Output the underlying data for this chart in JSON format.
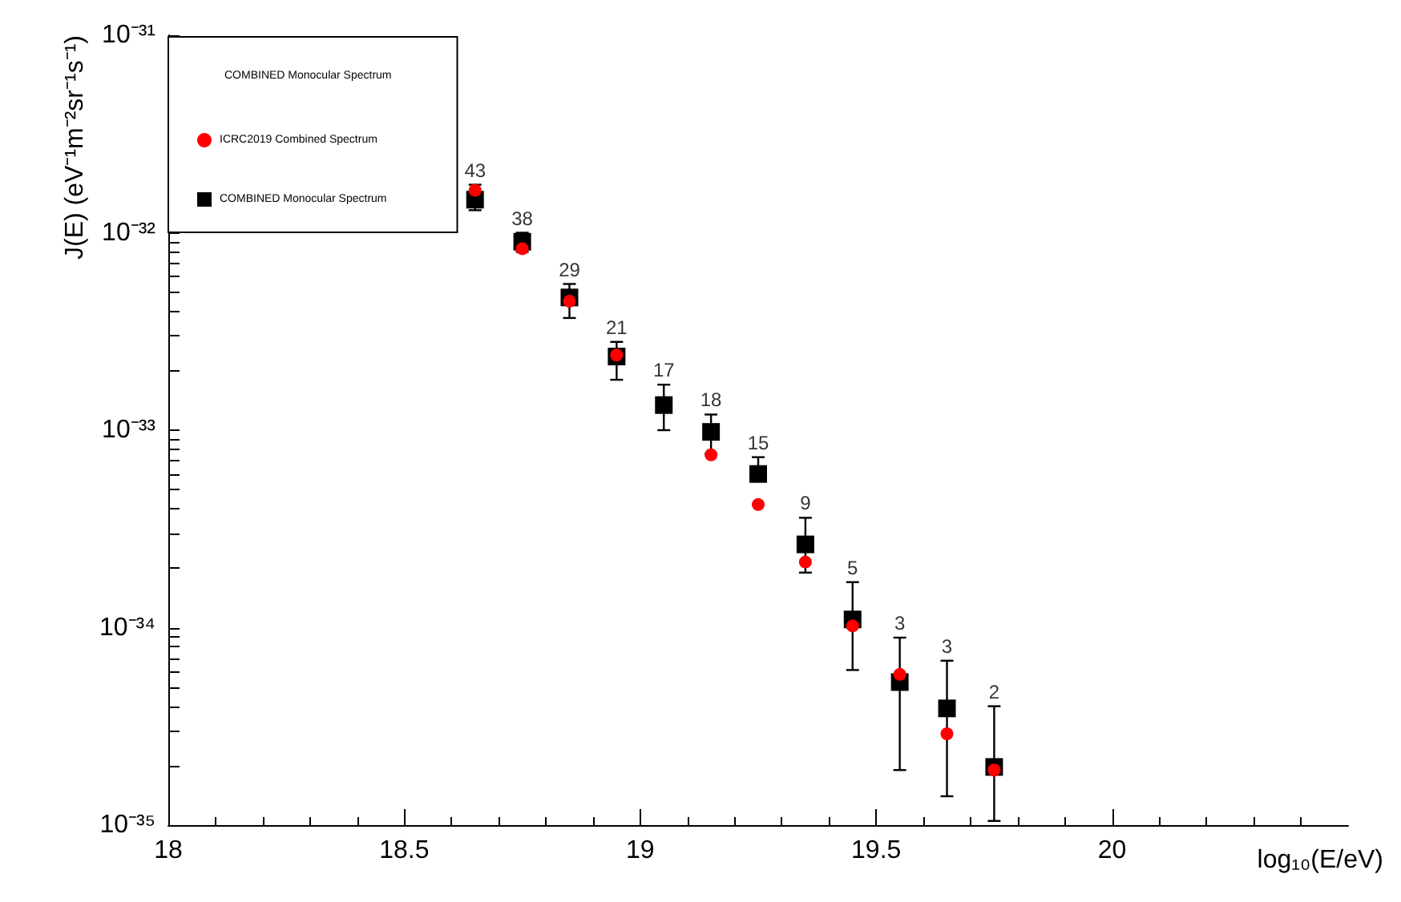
{
  "chart_data": {
    "type": "scatter",
    "xlabel": "log₁₀(E/eV)",
    "ylabel": "J(E) (eV⁻¹m⁻²sr⁻¹s⁻¹)",
    "legend_title": "COMBINED Monocular Spectrum",
    "legend": "top left",
    "log": "y",
    "xlim": [
      18,
      20.5
    ],
    "xticks": [
      18,
      18.5,
      19,
      19.5,
      20
    ],
    "ylim": [
      1e-35,
      1e-31
    ],
    "yticks": [
      {
        "value": 1e-35,
        "label": "10⁻³⁵"
      },
      {
        "value": 1e-34,
        "label": "10⁻³⁴"
      },
      {
        "value": 1e-33,
        "label": "10⁻³³"
      },
      {
        "value": 1e-32,
        "label": "10⁻³²"
      },
      {
        "value": 1e-31,
        "label": "10⁻³¹"
      }
    ],
    "x": [
      18.65,
      18.75,
      18.85,
      18.95,
      19.05,
      19.15,
      19.25,
      19.35,
      19.45,
      19.55,
      19.65,
      19.75
    ],
    "series": [
      {
        "name": "ICRC2019 Combined Spectrum",
        "color": "#ff0000",
        "marker": "circle",
        "values": [
          1.64e-32,
          8.3e-33,
          4.5e-33,
          2.4e-33,
          null,
          7.5e-34,
          4.2e-34,
          2.15e-34,
          1.02e-34,
          5.8e-35,
          2.9e-35,
          1.9e-35
        ]
      },
      {
        "name": "COMBINED Monocular Spectrum",
        "color": "#000000",
        "marker": "square",
        "values": [
          1.47e-32,
          9e-33,
          4.7e-33,
          2.36e-33,
          1.34e-33,
          9.8e-34,
          6e-34,
          2.64e-34,
          1.1e-34,
          5.3e-35,
          3.9e-35,
          1.97e-35
        ],
        "errors": [
          [
            1.3e-32,
            1.75e-32
          ],
          [
            8e-33,
            1e-32
          ],
          [
            3.7e-33,
            5.5e-33
          ],
          [
            1.8e-33,
            2.8e-33
          ],
          [
            1e-33,
            1.7e-33
          ],
          [
            7.6e-34,
            1.2e-33
          ],
          [
            6e-34,
            7.3e-34
          ],
          [
            1.9e-34,
            3.6e-34
          ],
          [
            6.1e-35,
            1.7e-34
          ],
          [
            1.9e-35,
            8.9e-35
          ],
          [
            1.4e-35,
            6.8e-35
          ],
          [
            1.05e-35,
            4e-35
          ]
        ]
      }
    ],
    "annotations": [
      {
        "text": "43",
        "x": 18.65,
        "y": 1.75e-32
      },
      {
        "text": "38",
        "x": 18.75,
        "y": 1e-32
      },
      {
        "text": "29",
        "x": 18.85,
        "y": 5.5e-33
      },
      {
        "text": "21",
        "x": 18.95,
        "y": 2.8e-33
      },
      {
        "text": "17",
        "x": 19.05,
        "y": 1.7e-33
      },
      {
        "text": "18",
        "x": 19.15,
        "y": 1.2e-33
      },
      {
        "text": "15",
        "x": 19.25,
        "y": 7.3e-34
      },
      {
        "text": "9",
        "x": 19.35,
        "y": 3.6e-34
      },
      {
        "text": "5",
        "x": 19.45,
        "y": 1.7e-34
      },
      {
        "text": "3",
        "x": 19.55,
        "y": 8.9e-35
      },
      {
        "text": "3",
        "x": 19.65,
        "y": 6.8e-35
      },
      {
        "text": "2",
        "x": 19.75,
        "y": 4e-35
      }
    ]
  }
}
